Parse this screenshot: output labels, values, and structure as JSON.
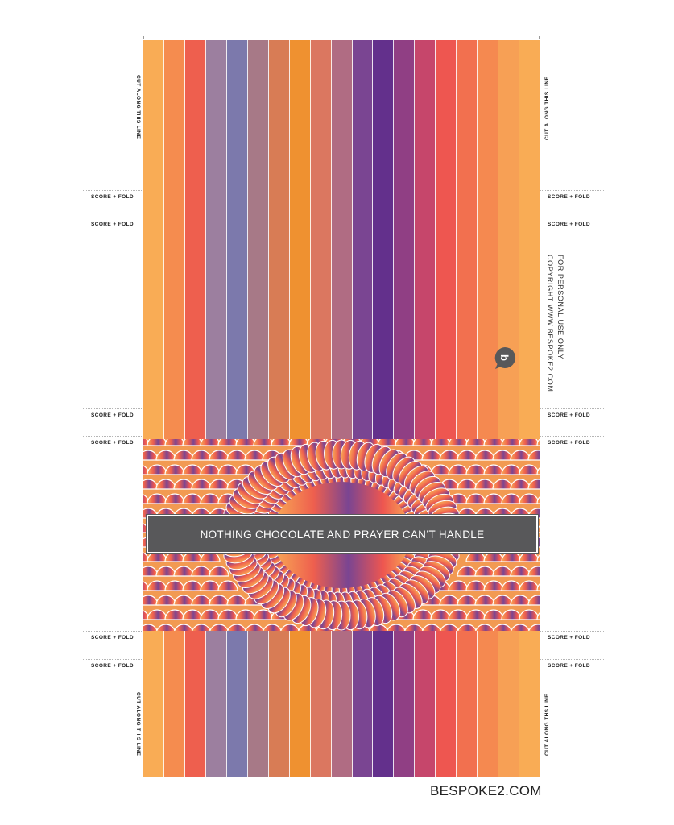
{
  "labels": {
    "cut": "CUT ALONG THIS LINE",
    "cut_right_bottom": "CUT ALONG THS LINE",
    "fold": "SCORE + FOLD"
  },
  "banner": {
    "text": "NOTHING CHOCOLATE AND PRAYER CAN’T HANDLE"
  },
  "copyright": {
    "line1": "FOR PERSONAL USE ONLY",
    "line2": "COPYRIGHT WWW.BESPOKE2.COM"
  },
  "logo": {
    "icon": "bespoke-speech-bubble-logo-icon"
  },
  "footer": {
    "site": "BESPOKE2.COM"
  },
  "colors": {
    "stripes": [
      "#f9ac55",
      "#f58c4f",
      "#ee5f4e",
      "#9c7f9f",
      "#7c79ac",
      "#a77987",
      "#d87c55",
      "#ef9130",
      "#db7760",
      "#b06c83",
      "#7a4592",
      "#63308c",
      "#903f84",
      "#c6466b",
      "#ee5650",
      "#f2704f",
      "#f58950",
      "#f7a055",
      "#f9ac55"
    ],
    "banner": "#58585a"
  }
}
